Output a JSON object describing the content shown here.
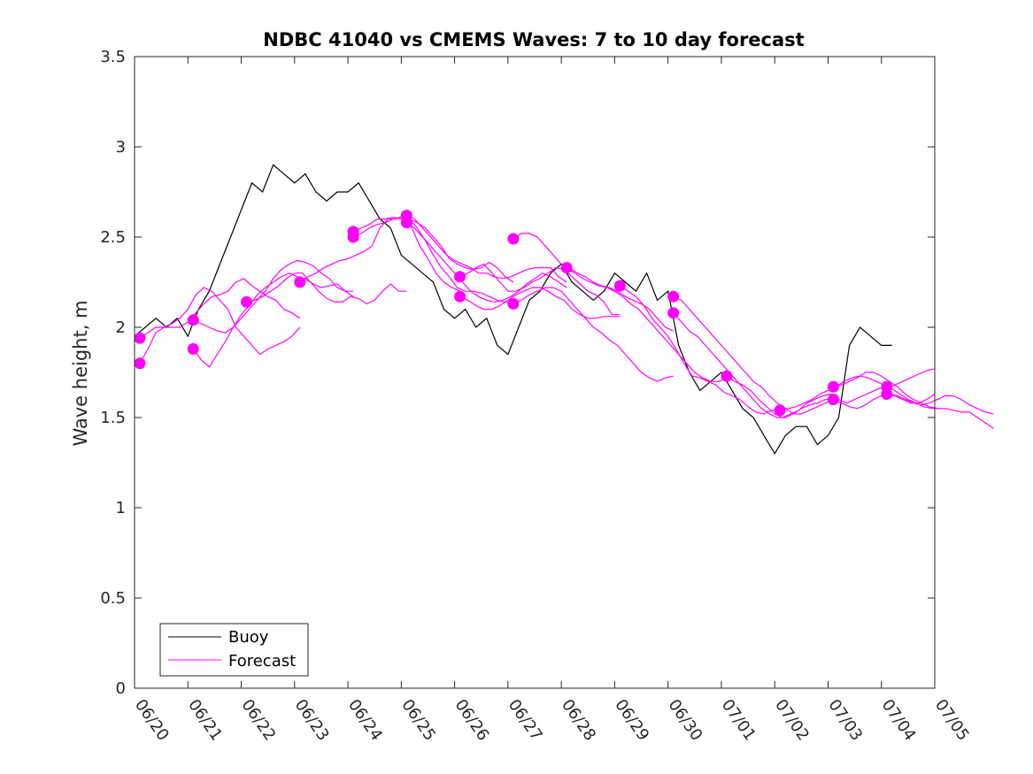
{
  "chart_data": {
    "type": "line",
    "title": "NDBC 41040 vs CMEMS Waves: 7 to 10 day forecast",
    "xlabel": "",
    "ylabel": "Wave height, m",
    "x_ticks": [
      "06/20",
      "06/21",
      "06/22",
      "06/23",
      "06/24",
      "06/25",
      "06/26",
      "06/27",
      "06/28",
      "06/29",
      "06/30",
      "07/01",
      "07/02",
      "07/03",
      "07/04",
      "07/05"
    ],
    "x_range_days": [
      0,
      15
    ],
    "ylim": [
      0,
      3.5
    ],
    "y_ticks": [
      "0",
      "0.5",
      "1",
      "1.5",
      "2",
      "2.5",
      "3",
      "3.5"
    ],
    "grid": false,
    "legend": {
      "placement": "bottom-left",
      "entries": [
        {
          "label": "Buoy",
          "color": "#000000"
        },
        {
          "label": "Forecast",
          "color": "#ff00ff"
        }
      ]
    },
    "colors": {
      "buoy": "#000000",
      "forecast": "#ff00ff"
    },
    "buoy": {
      "x_days": [
        0,
        0.2,
        0.4,
        0.6,
        0.8,
        1.0,
        1.2,
        1.4,
        1.6,
        1.8,
        2.0,
        2.2,
        2.4,
        2.6,
        2.8,
        3.0,
        3.2,
        3.4,
        3.6,
        3.8,
        4.0,
        4.2,
        4.4,
        4.6,
        4.8,
        5.0,
        5.2,
        5.4,
        5.6,
        5.8,
        6.0,
        6.2,
        6.4,
        6.6,
        6.8,
        7.0,
        7.2,
        7.4,
        7.6,
        7.8,
        8.0,
        8.2,
        8.4,
        8.6,
        8.8,
        9.0,
        9.2,
        9.4,
        9.6,
        9.8,
        10.0,
        10.2,
        10.4,
        10.6,
        10.8,
        11.0,
        11.2,
        11.4,
        11.6,
        11.8,
        12.0,
        12.2,
        12.4,
        12.6,
        12.8,
        13.0,
        13.2,
        13.4,
        13.6,
        13.8,
        14.0,
        14.2
      ],
      "values": [
        1.95,
        2.0,
        2.05,
        2.0,
        2.05,
        1.95,
        2.1,
        2.2,
        2.35,
        2.5,
        2.65,
        2.8,
        2.75,
        2.9,
        2.85,
        2.8,
        2.85,
        2.75,
        2.7,
        2.75,
        2.75,
        2.8,
        2.7,
        2.6,
        2.55,
        2.4,
        2.35,
        2.3,
        2.25,
        2.1,
        2.05,
        2.1,
        2.0,
        2.05,
        1.9,
        1.85,
        2.0,
        2.15,
        2.2,
        2.3,
        2.35,
        2.25,
        2.2,
        2.15,
        2.2,
        2.3,
        2.25,
        2.2,
        2.3,
        2.15,
        2.2,
        1.9,
        1.75,
        1.65,
        1.7,
        1.75,
        1.65,
        1.55,
        1.5,
        1.4,
        1.3,
        1.4,
        1.45,
        1.45,
        1.35,
        1.4,
        1.5,
        1.9,
        2.0,
        1.95,
        1.9,
        1.9
      ]
    },
    "forecast_series": [
      {
        "start_day": 0.1,
        "values": [
          1.8,
          1.88,
          1.97,
          2.0,
          2.02,
          2.05,
          2.1,
          2.18,
          2.22,
          2.2,
          2.15,
          2.1,
          2.0,
          1.95,
          1.9,
          1.85,
          1.88,
          1.9,
          1.92,
          1.95,
          2.0
        ]
      },
      {
        "start_day": 0.1,
        "values": [
          1.94,
          1.97,
          2.0,
          2.0,
          2.0,
          2.0,
          2.03,
          2.08,
          2.13,
          2.17,
          2.18,
          2.2,
          2.25,
          2.27,
          2.23,
          2.2,
          2.17,
          2.15,
          2.1,
          2.08,
          2.05
        ]
      },
      {
        "start_day": 1.1,
        "values": [
          1.88,
          1.82,
          1.78,
          1.85,
          1.92,
          2.0,
          2.07,
          2.12,
          2.18,
          2.22,
          2.25,
          2.28,
          2.3,
          2.28,
          2.27,
          2.24,
          2.22,
          2.23,
          2.24,
          2.2,
          2.2
        ]
      },
      {
        "start_day": 1.1,
        "values": [
          2.04,
          2.02,
          2.0,
          1.98,
          1.97,
          2.0,
          2.05,
          2.1,
          2.15,
          2.2,
          2.27,
          2.32,
          2.35,
          2.37,
          2.36,
          2.34,
          2.3,
          2.27,
          2.22,
          2.2,
          2.17
        ]
      },
      {
        "start_day": 2.1,
        "values": [
          2.14,
          2.15,
          2.17,
          2.2,
          2.23,
          2.27,
          2.3,
          2.3,
          2.25,
          2.2,
          2.16,
          2.14,
          2.14,
          2.17,
          2.16,
          2.13,
          2.15,
          2.2,
          2.24,
          2.2,
          2.2
        ]
      },
      {
        "start_day": 3.1,
        "values": [
          2.25,
          2.28,
          2.3,
          2.33,
          2.35,
          2.37,
          2.38,
          2.4,
          2.42,
          2.45,
          2.55,
          2.6,
          2.6,
          2.62,
          2.55,
          2.45,
          2.38,
          2.3,
          2.25,
          2.22,
          2.2
        ]
      },
      {
        "start_day": 4.1,
        "values": [
          2.53,
          2.55,
          2.57,
          2.6,
          2.6,
          2.61,
          2.6,
          2.6,
          2.58,
          2.55,
          2.5,
          2.45,
          2.38,
          2.35,
          2.33,
          2.32,
          2.33,
          2.36,
          2.33,
          2.28,
          2.25
        ]
      },
      {
        "start_day": 4.1,
        "values": [
          2.5,
          2.52,
          2.55,
          2.57,
          2.58,
          2.6,
          2.61,
          2.6,
          2.55,
          2.48,
          2.4,
          2.33,
          2.28,
          2.22,
          2.2,
          2.2,
          2.19,
          2.17,
          2.15,
          2.14,
          2.13
        ]
      },
      {
        "start_day": 5.1,
        "values": [
          2.62,
          2.6,
          2.55,
          2.5,
          2.45,
          2.4,
          2.37,
          2.35,
          2.33,
          2.3,
          2.3,
          2.28,
          2.27,
          2.28,
          2.3,
          2.32,
          2.33,
          2.33,
          2.33,
          2.28,
          2.25
        ]
      },
      {
        "start_day": 5.1,
        "values": [
          2.58,
          2.55,
          2.5,
          2.45,
          2.4,
          2.35,
          2.3,
          2.25,
          2.2,
          2.17,
          2.15,
          2.14,
          2.15,
          2.17,
          2.2,
          2.24,
          2.27,
          2.3,
          2.28,
          2.25,
          2.22
        ]
      },
      {
        "start_day": 6.1,
        "values": [
          2.28,
          2.3,
          2.33,
          2.35,
          2.3,
          2.25,
          2.2,
          2.2,
          2.22,
          2.25,
          2.27,
          2.3,
          2.33,
          2.32,
          2.28,
          2.24,
          2.2,
          2.18,
          2.14,
          2.07,
          2.07
        ]
      },
      {
        "start_day": 6.1,
        "values": [
          2.17,
          2.15,
          2.12,
          2.1,
          2.1,
          2.12,
          2.15,
          2.18,
          2.2,
          2.22,
          2.22,
          2.2,
          2.17,
          2.15,
          2.1,
          2.07,
          2.05,
          2.05,
          2.06,
          2.06,
          2.06
        ]
      },
      {
        "start_day": 7.1,
        "values": [
          2.49,
          2.52,
          2.52,
          2.5,
          2.45,
          2.4,
          2.35,
          2.33,
          2.3,
          2.28,
          2.25,
          2.23,
          2.22,
          2.2,
          2.17,
          2.15,
          2.13,
          2.1,
          2.05,
          2.0,
          1.98
        ]
      },
      {
        "start_day": 7.1,
        "values": [
          2.13,
          2.15,
          2.18,
          2.2,
          2.22,
          2.22,
          2.2,
          2.15,
          2.1,
          2.05,
          2.0,
          1.97,
          1.93,
          1.9,
          1.85,
          1.8,
          1.75,
          1.72,
          1.7,
          1.72,
          1.73
        ]
      },
      {
        "start_day": 8.1,
        "values": [
          2.33,
          2.3,
          2.27,
          2.25,
          2.23,
          2.22,
          2.2,
          2.17,
          2.13,
          2.1,
          2.05,
          2.0,
          1.95,
          1.9,
          1.85,
          1.8,
          1.75,
          1.72,
          1.7,
          1.7,
          1.72
        ]
      },
      {
        "start_day": 9.1,
        "values": [
          2.23,
          2.2,
          2.17,
          2.12,
          2.05,
          2.0,
          1.95,
          1.88,
          1.8,
          1.73,
          1.72,
          1.7,
          1.68,
          1.64,
          1.62,
          1.6,
          1.56,
          1.53,
          1.52,
          1.54,
          1.54
        ]
      },
      {
        "start_day": 10.1,
        "values": [
          2.17,
          2.15,
          2.1,
          2.05,
          2.0,
          1.95,
          1.9,
          1.85,
          1.8,
          1.75,
          1.7,
          1.67,
          1.62,
          1.58,
          1.55,
          1.52,
          1.52,
          1.54,
          1.56,
          1.58,
          1.6
        ]
      },
      {
        "start_day": 10.1,
        "values": [
          2.08,
          2.03,
          1.98,
          1.95,
          1.9,
          1.85,
          1.8,
          1.75,
          1.7,
          1.65,
          1.6,
          1.55,
          1.52,
          1.5,
          1.5,
          1.52,
          1.55,
          1.57,
          1.58,
          1.6,
          1.6
        ]
      },
      {
        "start_day": 11.1,
        "values": [
          1.73,
          1.7,
          1.68,
          1.65,
          1.6,
          1.56,
          1.52,
          1.5,
          1.52,
          1.54,
          1.58,
          1.6,
          1.62,
          1.63,
          1.6,
          1.58,
          1.6,
          1.62,
          1.64,
          1.66,
          1.67
        ]
      },
      {
        "start_day": 12.1,
        "values": [
          1.54,
          1.55,
          1.56,
          1.58,
          1.6,
          1.63,
          1.65,
          1.67,
          1.7,
          1.72,
          1.73,
          1.72,
          1.7,
          1.68,
          1.66,
          1.63,
          1.6,
          1.58,
          1.56,
          1.55,
          1.55
        ]
      },
      {
        "start_day": 13.1,
        "values": [
          1.67,
          1.68,
          1.7,
          1.72,
          1.75,
          1.75,
          1.73,
          1.7,
          1.67,
          1.63,
          1.6,
          1.58,
          1.56,
          1.55,
          1.55,
          1.54,
          1.53,
          1.53,
          1.5,
          1.47,
          1.44
        ]
      },
      {
        "start_day": 13.1,
        "values": [
          1.6,
          1.58,
          1.56,
          1.55,
          1.57,
          1.6,
          1.62,
          1.63,
          1.62,
          1.6,
          1.58,
          1.57,
          1.58,
          1.6,
          1.62,
          1.62,
          1.6,
          1.57,
          1.55,
          1.53,
          1.52
        ]
      },
      {
        "start_day": 14.1,
        "values": [
          1.67,
          1.68,
          1.7,
          1.72,
          1.74,
          1.76,
          1.77
        ]
      },
      {
        "start_day": 14.1,
        "values": [
          1.63,
          1.62,
          1.6,
          1.58,
          1.58,
          1.6,
          1.63
        ]
      }
    ]
  }
}
